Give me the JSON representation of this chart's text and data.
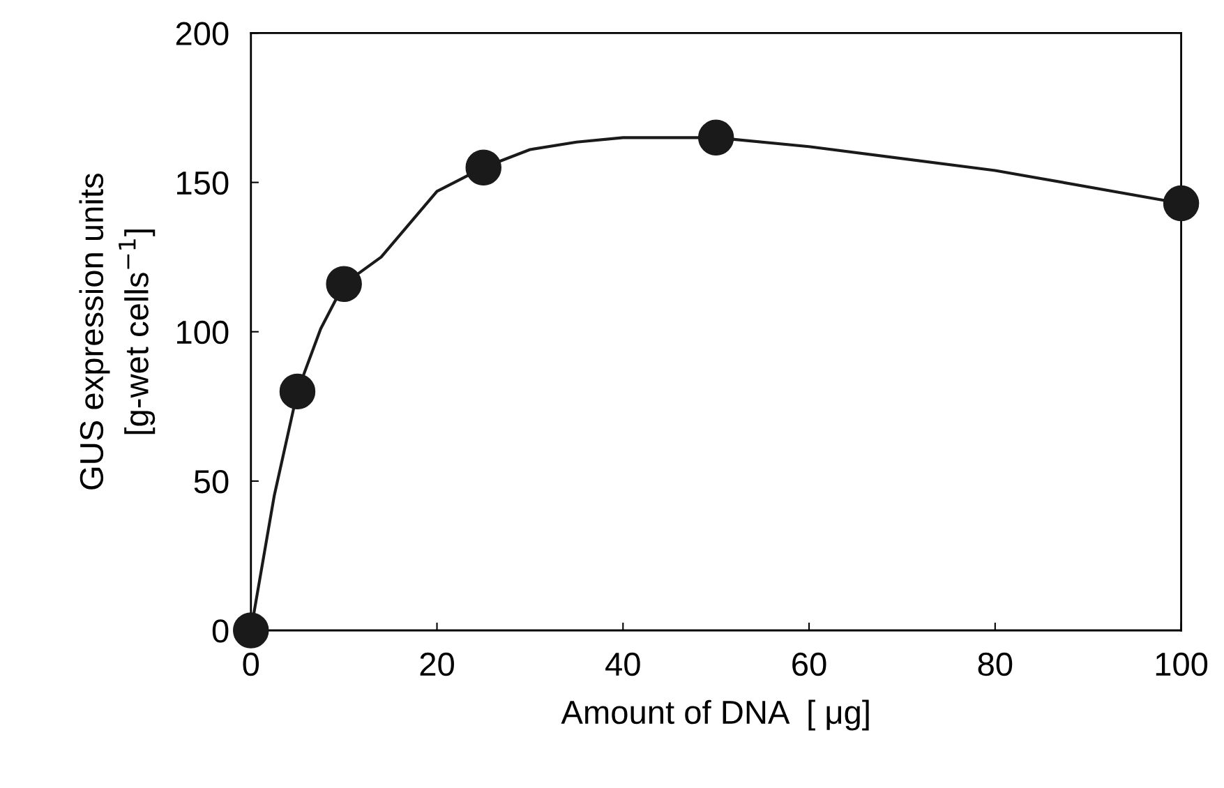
{
  "chart_data": {
    "type": "scatter",
    "xlabel": "Amount of DNA  [ μg]",
    "ylabel": "GUS expression units\n[g-wet cells$^{−1}$]",
    "xlim": [
      0,
      100
    ],
    "ylim": [
      0,
      200
    ],
    "xticks": [
      0,
      20,
      40,
      60,
      80,
      100
    ],
    "yticks": [
      0,
      50,
      100,
      150,
      200
    ],
    "grid": false,
    "legend": false,
    "series": [
      {
        "type": "line",
        "color": "#1a1a1a",
        "marker": "none",
        "line_style": "solid",
        "x": [
          0,
          2.5,
          5,
          7.5,
          10,
          14,
          20,
          25,
          30,
          35,
          40,
          50,
          60,
          80,
          100
        ],
        "values": [
          0,
          45,
          80,
          101,
          116,
          125,
          147,
          155,
          161,
          163.5,
          165,
          165,
          162,
          154,
          143
        ]
      },
      {
        "color": "#1a1a1a",
        "marker": "circle",
        "x": [
          0,
          5,
          10,
          25,
          50,
          100
        ],
        "values": [
          0,
          80,
          116,
          155,
          165,
          143
        ]
      }
    ]
  }
}
